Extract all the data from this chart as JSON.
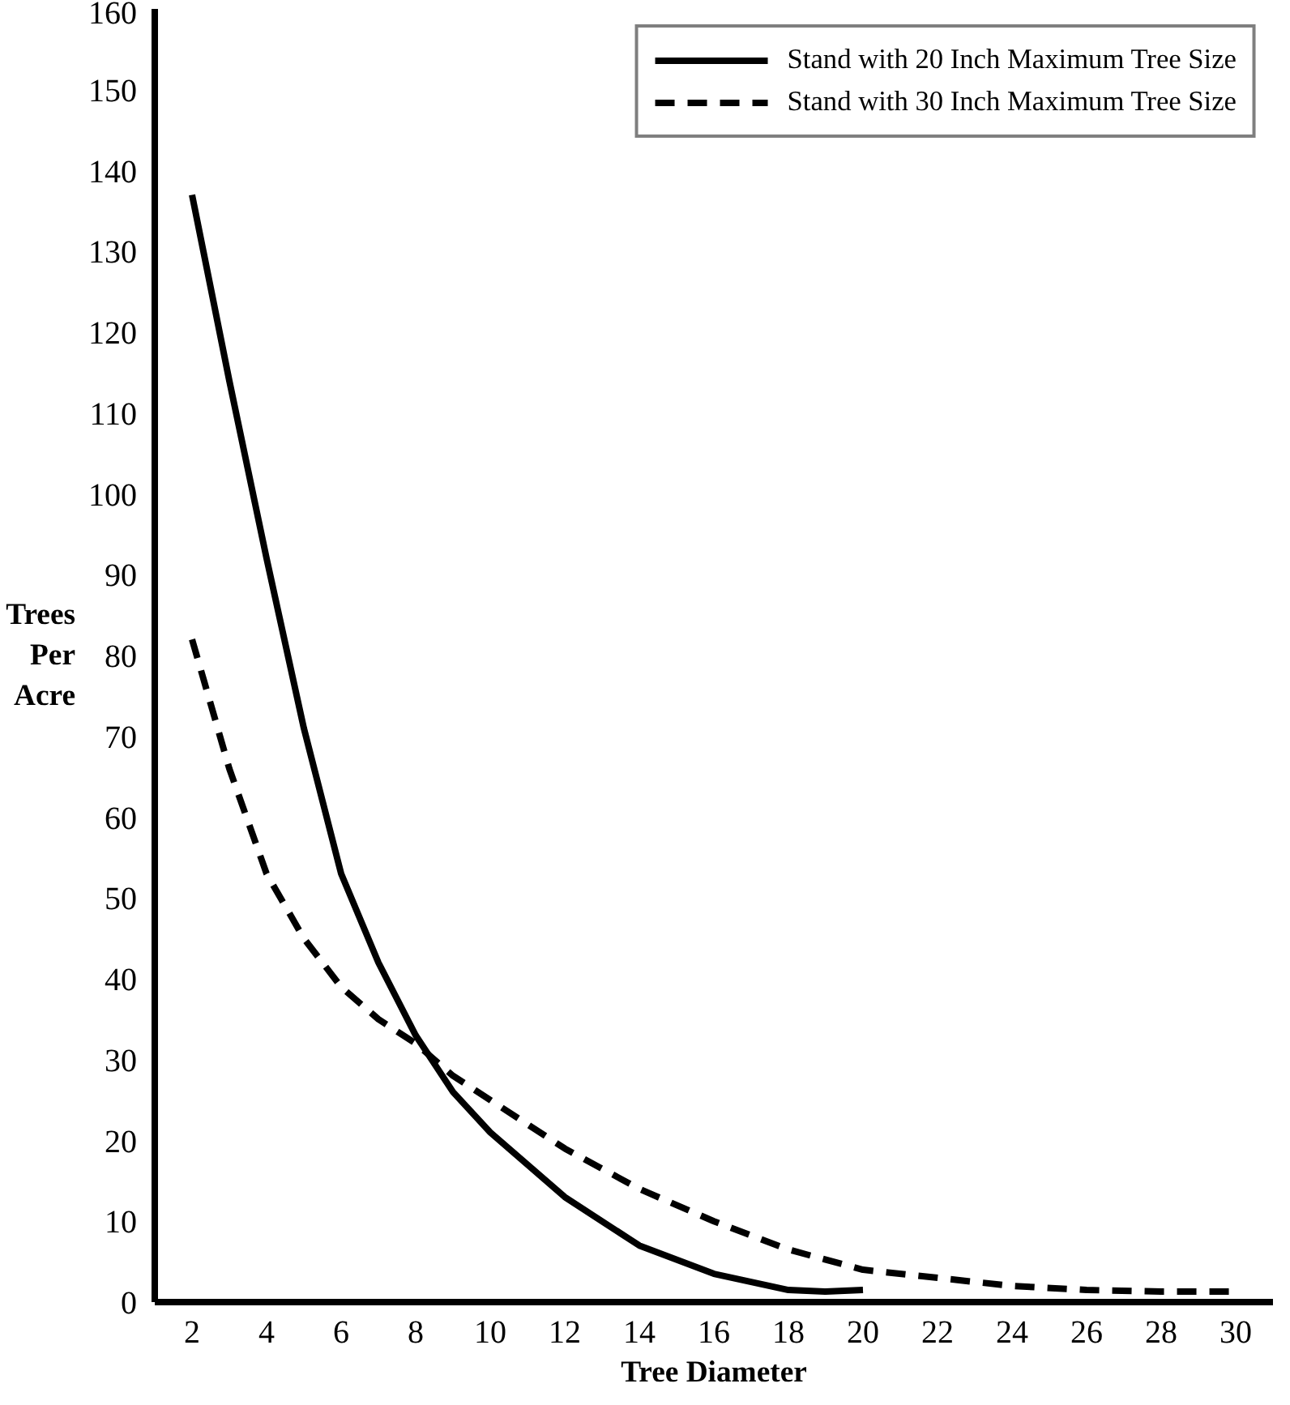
{
  "chart_data": {
    "type": "line",
    "xlabel": "Tree Diameter",
    "ylabel": "Trees Per Acre",
    "x": [
      2,
      3,
      4,
      5,
      6,
      7,
      8,
      9,
      10,
      12,
      14,
      16,
      18,
      19,
      20
    ],
    "series": [
      {
        "name": "Stand with 20 Inch Maximum Tree Size",
        "color": "#000000",
        "line_style": "solid",
        "values": [
          137,
          114,
          92,
          71,
          53,
          42,
          33,
          26,
          21,
          13,
          7,
          3.5,
          1.5,
          1.3,
          1.5
        ]
      },
      {
        "name": "Stand with 30 Inch Maximum Tree Size",
        "color": "#000000",
        "line_style": "dashed",
        "x": [
          2,
          3,
          4,
          5,
          6,
          7,
          8,
          9,
          10,
          12,
          14,
          16,
          18,
          20,
          22,
          24,
          26,
          28,
          30
        ],
        "values": [
          82,
          66,
          53,
          45,
          39,
          35,
          32,
          28,
          25,
          19,
          14,
          10,
          6.5,
          4,
          3,
          2,
          1.5,
          1.3,
          1.3
        ]
      }
    ],
    "xlim": [
      1,
      31
    ],
    "ylim": [
      0,
      160
    ],
    "xticks": [
      2,
      4,
      6,
      8,
      10,
      12,
      14,
      16,
      18,
      20,
      22,
      24,
      26,
      28,
      30
    ],
    "yticks": [
      0,
      10,
      20,
      30,
      40,
      50,
      60,
      70,
      80,
      90,
      100,
      110,
      120,
      130,
      140,
      150,
      160
    ],
    "grid": false,
    "legend": "top right",
    "marker": "none"
  }
}
